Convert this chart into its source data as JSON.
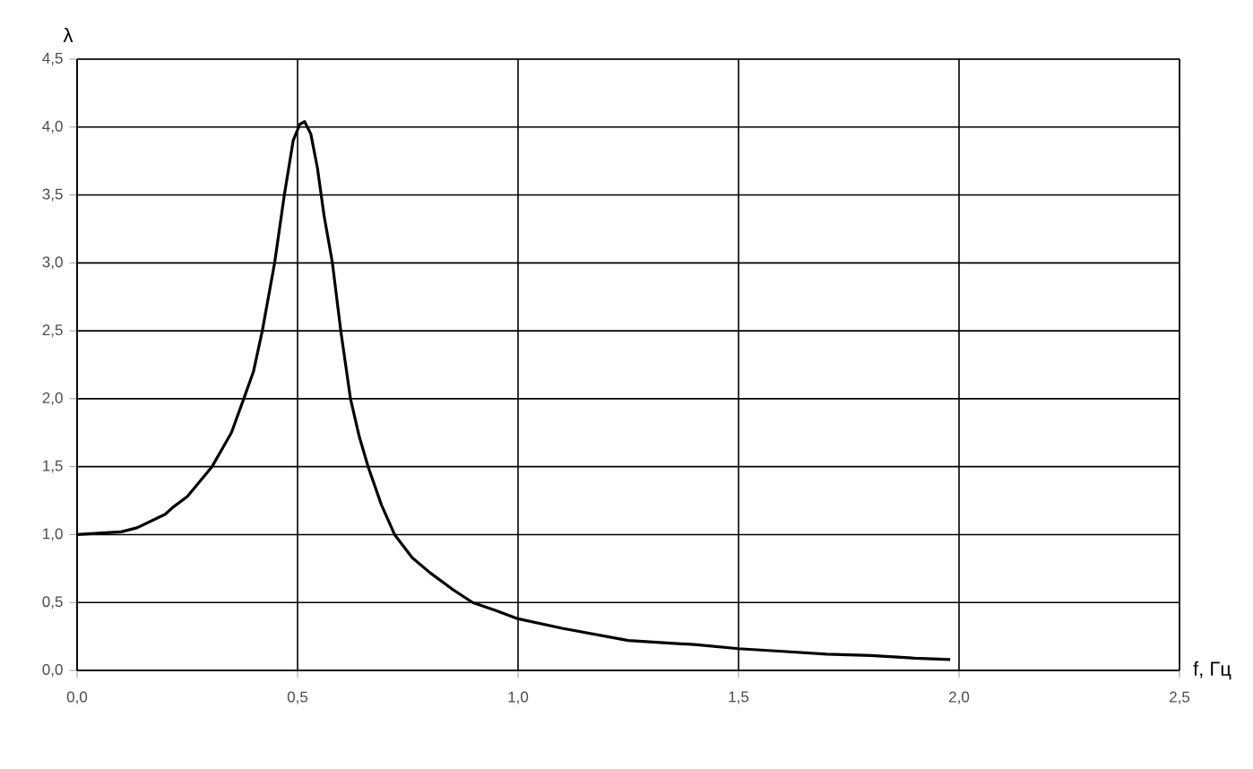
{
  "chart_data": {
    "type": "line",
    "xlabel": "f, Гц",
    "ylabel": "λ",
    "x": [
      0,
      0.05,
      0.1,
      0.136,
      0.2,
      0.217,
      0.25,
      0.306,
      0.35,
      0.378,
      0.4,
      0.42,
      0.448,
      0.47,
      0.49,
      0.505,
      0.516,
      0.53,
      0.545,
      0.56,
      0.579,
      0.598,
      0.62,
      0.64,
      0.66,
      0.69,
      0.72,
      0.76,
      0.8,
      0.85,
      0.897,
      0.95,
      1.0,
      1.1,
      1.2,
      1.25,
      1.4,
      1.5,
      1.6,
      1.7,
      1.8,
      1.9,
      1.98
    ],
    "series": [
      {
        "color": "#000000",
        "values": [
          1.0,
          1.01,
          1.02,
          1.05,
          1.15,
          1.2,
          1.28,
          1.5,
          1.75,
          2.0,
          2.2,
          2.5,
          3.0,
          3.5,
          3.9,
          4.02,
          4.04,
          3.95,
          3.7,
          3.35,
          3.0,
          2.5,
          2.0,
          1.72,
          1.5,
          1.22,
          1.0,
          0.83,
          0.72,
          0.6,
          0.5,
          0.44,
          0.38,
          0.31,
          0.25,
          0.22,
          0.19,
          0.16,
          0.14,
          0.12,
          0.11,
          0.09,
          0.08
        ]
      }
    ],
    "xlim": [
      0,
      2.5
    ],
    "ylim": [
      0,
      4.5
    ],
    "xticks": [
      {
        "value": 0,
        "label": "0,0"
      },
      {
        "value": 0.5,
        "label": "0,5"
      },
      {
        "value": 1.0,
        "label": "1,0"
      },
      {
        "value": 1.5,
        "label": "1,5"
      },
      {
        "value": 2.0,
        "label": "2,0"
      },
      {
        "value": 2.5,
        "label": "2,5"
      }
    ],
    "yticks": [
      {
        "value": 0,
        "label": "0,0"
      },
      {
        "value": 0.5,
        "label": "0,5"
      },
      {
        "value": 1.0,
        "label": "1,0"
      },
      {
        "value": 1.5,
        "label": "1,5"
      },
      {
        "value": 2.0,
        "label": "2,0"
      },
      {
        "value": 2.5,
        "label": "2,5"
      },
      {
        "value": 3.0,
        "label": "3,0"
      },
      {
        "value": 3.5,
        "label": "3,5"
      },
      {
        "value": 4.0,
        "label": "4,0"
      },
      {
        "value": 4.5,
        "label": "4,5"
      }
    ],
    "grid": true,
    "legend": false,
    "marker": "none",
    "line_style": "solid"
  }
}
